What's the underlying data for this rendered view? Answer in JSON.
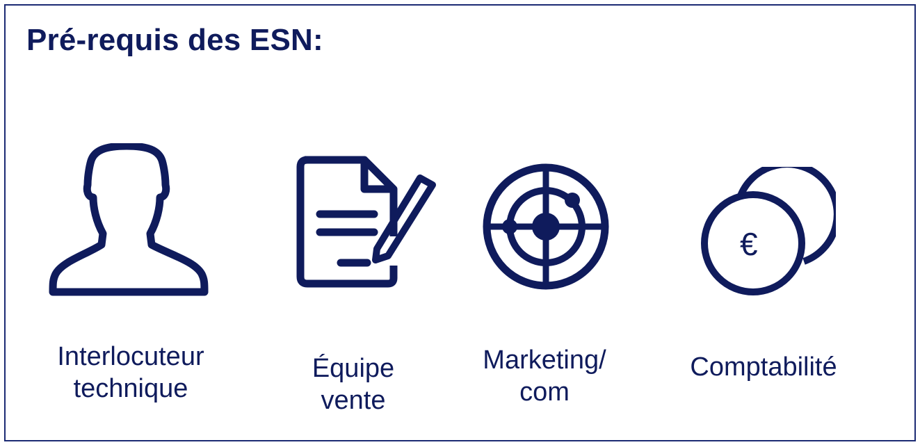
{
  "title": "Pré-requis des ESN:",
  "colors": {
    "primary": "#0f1b5c",
    "border": "#1b2a73",
    "background": "#ffffff"
  },
  "items": [
    {
      "icon": "person-icon",
      "line1": "Interlocuteur",
      "line2": "technique"
    },
    {
      "icon": "document-pen-icon",
      "line1": "Équipe",
      "line2": "vente"
    },
    {
      "icon": "target-icon",
      "line1": "Marketing/",
      "line2": "com"
    },
    {
      "icon": "euro-coins-icon",
      "line1": "Comptabilité",
      "line2": "",
      "symbol": "€"
    }
  ]
}
